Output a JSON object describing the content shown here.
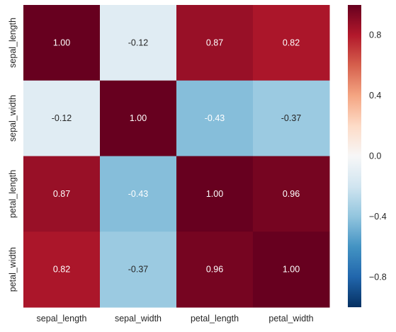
{
  "chart_data": {
    "type": "heatmap",
    "title": "",
    "xlabel": "",
    "ylabel": "",
    "x_categories": [
      "sepal_length",
      "sepal_width",
      "petal_length",
      "petal_width"
    ],
    "y_categories": [
      "sepal_length",
      "sepal_width",
      "petal_length",
      "petal_width"
    ],
    "values": [
      [
        1.0,
        -0.12,
        0.87,
        0.82
      ],
      [
        -0.12,
        1.0,
        -0.43,
        -0.37
      ],
      [
        0.87,
        -0.43,
        1.0,
        0.96
      ],
      [
        0.82,
        -0.37,
        0.96,
        1.0
      ]
    ],
    "value_format": "2 decimals",
    "colormap": "RdBu_r",
    "vmin": -1.0,
    "vmax": 1.0,
    "colorbar": {
      "ticks": [
        0.8,
        0.4,
        0.0,
        -0.4,
        -0.8
      ],
      "tick_labels": [
        "0.8",
        "0.4",
        "0.0",
        "−0.4",
        "−0.8"
      ],
      "placement": "right"
    },
    "grid": false
  },
  "colors": {
    "text_on_dark": "#ffffff",
    "text_on_light": "#262626",
    "tick_color": "#262626"
  }
}
